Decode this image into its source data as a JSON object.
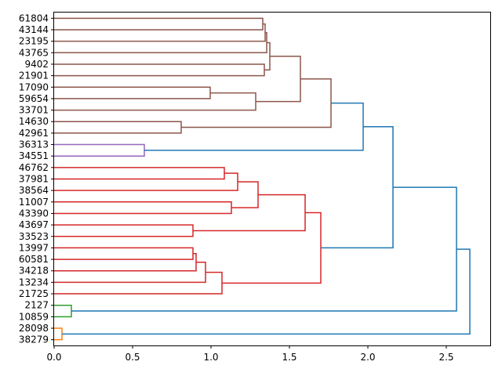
{
  "chart_data": {
    "type": "dendrogram",
    "orientation": "horizontal",
    "title": "",
    "xlabel": "",
    "ylabel": "",
    "xlim": [
      0,
      2.78
    ],
    "x_ticks": [
      0.0,
      0.5,
      1.0,
      1.5,
      2.0,
      2.5
    ],
    "x_tick_labels": [
      "0.0",
      "0.5",
      "1.0",
      "1.5",
      "2.0",
      "2.5"
    ],
    "leaves": [
      "61804",
      "43144",
      "23195",
      "43765",
      "9402",
      "21901",
      "17090",
      "59654",
      "33701",
      "14630",
      "42961",
      "36313",
      "34551",
      "46762",
      "37981",
      "38564",
      "11007",
      "43390",
      "43697",
      "33523",
      "13997",
      "60581",
      "34218",
      "13234",
      "21725",
      "2127",
      "10859",
      "28098",
      "38279"
    ],
    "colors": {
      "brown": "#8c564b",
      "purple": "#9467bd",
      "red": "#d62728",
      "green": "#2ca02c",
      "orange": "#ff7f0e",
      "blue": "#1f77b4"
    },
    "links": [
      {
        "a": "61804",
        "b": "43144",
        "height": 1.33,
        "color": "brown"
      },
      {
        "a": "L1",
        "b": "23195",
        "height": 1.345,
        "color": "brown"
      },
      {
        "a": "L2",
        "b": "43765",
        "height": 1.355,
        "color": "brown"
      },
      {
        "a": "9402",
        "b": "21901",
        "height": 1.34,
        "color": "brown"
      },
      {
        "a": "L3",
        "b": "L4",
        "height": 1.375,
        "color": "brown"
      },
      {
        "a": "17090",
        "b": "59654",
        "height": 0.995,
        "color": "brown"
      },
      {
        "a": "L6",
        "b": "33701",
        "height": 1.285,
        "color": "brown"
      },
      {
        "a": "L5",
        "b": "L7",
        "height": 1.57,
        "color": "brown"
      },
      {
        "a": "14630",
        "b": "42961",
        "height": 0.81,
        "color": "brown"
      },
      {
        "a": "L8",
        "b": "L9",
        "height": 1.765,
        "color": "brown"
      },
      {
        "a": "36313",
        "b": "34551",
        "height": 0.575,
        "color": "purple"
      },
      {
        "a": "L10",
        "b": "L11",
        "height": 1.97,
        "color": "blue"
      },
      {
        "a": "46762",
        "b": "37981",
        "height": 1.085,
        "color": "red"
      },
      {
        "a": "L13",
        "b": "38564",
        "height": 1.17,
        "color": "red"
      },
      {
        "a": "11007",
        "b": "43390",
        "height": 1.13,
        "color": "red"
      },
      {
        "a": "L14",
        "b": "L15",
        "height": 1.3,
        "color": "red"
      },
      {
        "a": "43697",
        "b": "33523",
        "height": 0.885,
        "color": "red"
      },
      {
        "a": "L16",
        "b": "L17",
        "height": 1.6,
        "color": "red"
      },
      {
        "a": "13997",
        "b": "60581",
        "height": 0.885,
        "color": "red"
      },
      {
        "a": "L19",
        "b": "34218",
        "height": 0.905,
        "color": "red"
      },
      {
        "a": "L20",
        "b": "13234",
        "height": 0.965,
        "color": "red"
      },
      {
        "a": "L21",
        "b": "21725",
        "height": 1.07,
        "color": "red"
      },
      {
        "a": "L18",
        "b": "L22",
        "height": 1.7,
        "color": "red"
      },
      {
        "a": "L12",
        "b": "L23",
        "height": 2.16,
        "color": "blue"
      },
      {
        "a": "2127",
        "b": "10859",
        "height": 0.11,
        "color": "green"
      },
      {
        "a": "L24",
        "b": "L25",
        "height": 2.565,
        "color": "blue"
      },
      {
        "a": "28098",
        "b": "38279",
        "height": 0.05,
        "color": "orange"
      },
      {
        "a": "L26",
        "b": "L27",
        "height": 2.65,
        "color": "blue"
      }
    ]
  }
}
